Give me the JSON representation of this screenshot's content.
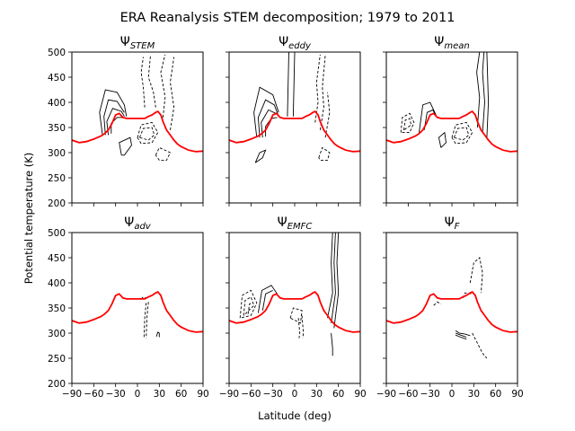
{
  "figure": {
    "suptitle": "ERA Reanalysis STEM decomposition; 1979 to 2011",
    "xlabel": "Latitude (deg)",
    "ylabel": "Potential temperature (K)"
  },
  "chart_data": {
    "type": "contour",
    "xlim": [
      -90,
      90
    ],
    "ylim": [
      200,
      500
    ],
    "xticks": [
      -90,
      -60,
      -30,
      0,
      30,
      60,
      90
    ],
    "yticks": [
      200,
      250,
      300,
      350,
      400,
      450,
      500
    ],
    "xtick_labels": [
      "−90",
      "−60",
      "−30",
      "0",
      "30",
      "60",
      "90"
    ],
    "ytick_labels": [
      "200",
      "250",
      "300",
      "350",
      "400",
      "450",
      "500"
    ],
    "boundary_color": "#ff0000",
    "contour_color": "#000000",
    "boundary_line": {
      "lat": [
        -90,
        -80,
        -70,
        -60,
        -50,
        -45,
        -40,
        -35,
        -30,
        -25,
        -20,
        -15,
        -10,
        -5,
        0,
        5,
        10,
        15,
        20,
        25,
        28,
        32,
        35,
        40,
        45,
        50,
        55,
        60,
        70,
        80,
        90
      ],
      "theta": [
        325,
        320,
        322,
        327,
        333,
        338,
        345,
        358,
        375,
        378,
        370,
        368,
        368,
        368,
        368,
        368,
        368,
        372,
        375,
        380,
        382,
        375,
        362,
        345,
        335,
        325,
        317,
        312,
        305,
        302,
        303
      ]
    },
    "panels": [
      {
        "title_base": "Ψ",
        "title_sub": "STEM"
      },
      {
        "title_base": "Ψ",
        "title_sub": "eddy"
      },
      {
        "title_base": "Ψ",
        "title_sub": "mean"
      },
      {
        "title_base": "Ψ",
        "title_sub": "adv"
      },
      {
        "title_base": "Ψ",
        "title_sub": "EMFC"
      },
      {
        "title_base": "Ψ",
        "title_sub": "F"
      }
    ]
  }
}
